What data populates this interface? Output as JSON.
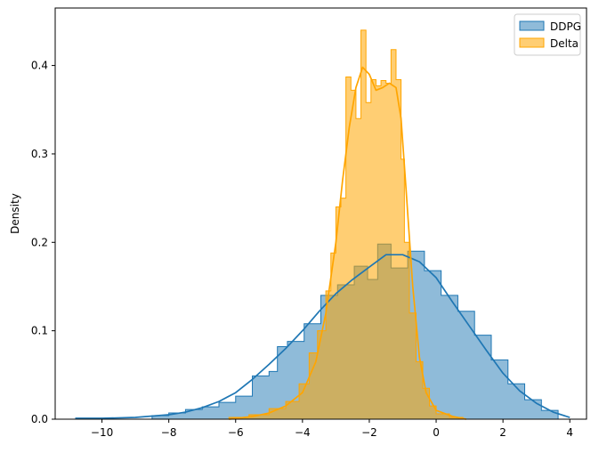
{
  "chart_data": {
    "type": "histogram",
    "title": "",
    "xlabel": "",
    "ylabel": "Density",
    "xlim": [
      -11.4,
      4.5
    ],
    "ylim": [
      0,
      0.465
    ],
    "xticks": [
      -10,
      -8,
      -6,
      -4,
      -2,
      0,
      2,
      4
    ],
    "xtick_labels": [
      "−10",
      "−8",
      "−6",
      "−4",
      "−2",
      "0",
      "2",
      "4"
    ],
    "yticks": [
      0.0,
      0.1,
      0.2,
      0.3,
      0.4
    ],
    "ytick_labels": [
      "0.0",
      "0.1",
      "0.2",
      "0.3",
      "0.4"
    ],
    "grid": false,
    "legend_position": "upper right",
    "series": [
      {
        "name": "DDPG",
        "color": "#1f77b4",
        "bins": [
          [
            -8.5,
            -8.0,
            0.004
          ],
          [
            -8.0,
            -7.5,
            0.007
          ],
          [
            -7.5,
            -7.0,
            0.011
          ],
          [
            -7.0,
            -6.5,
            0.014
          ],
          [
            -6.5,
            -6.0,
            0.019
          ],
          [
            -6.0,
            -5.5,
            0.026
          ],
          [
            -5.5,
            -5.0,
            0.049
          ],
          [
            -5.0,
            -4.75,
            0.054
          ],
          [
            -4.75,
            -4.45,
            0.082
          ],
          [
            -4.45,
            -3.95,
            0.088
          ],
          [
            -3.95,
            -3.45,
            0.108
          ],
          [
            -3.45,
            -2.95,
            0.14
          ],
          [
            -2.95,
            -2.45,
            0.152
          ],
          [
            -2.45,
            -2.05,
            0.173
          ],
          [
            -2.05,
            -1.75,
            0.158
          ],
          [
            -1.75,
            -1.35,
            0.198
          ],
          [
            -1.35,
            -0.85,
            0.171
          ],
          [
            -0.85,
            -0.35,
            0.19
          ],
          [
            -0.35,
            0.15,
            0.168
          ],
          [
            0.15,
            0.65,
            0.14
          ],
          [
            0.65,
            1.15,
            0.122
          ],
          [
            1.15,
            1.65,
            0.095
          ],
          [
            1.65,
            2.15,
            0.067
          ],
          [
            2.15,
            2.65,
            0.04
          ],
          [
            2.65,
            3.15,
            0.022
          ],
          [
            3.15,
            3.65,
            0.01
          ]
        ],
        "kde": [
          [
            -10.8,
            0.001
          ],
          [
            -10.0,
            0.001
          ],
          [
            -9.0,
            0.002
          ],
          [
            -8.0,
            0.005
          ],
          [
            -7.5,
            0.008
          ],
          [
            -7.0,
            0.013
          ],
          [
            -6.5,
            0.02
          ],
          [
            -6.0,
            0.03
          ],
          [
            -5.5,
            0.045
          ],
          [
            -5.0,
            0.062
          ],
          [
            -4.5,
            0.08
          ],
          [
            -4.0,
            0.1
          ],
          [
            -3.5,
            0.122
          ],
          [
            -3.0,
            0.142
          ],
          [
            -2.5,
            0.158
          ],
          [
            -2.0,
            0.172
          ],
          [
            -1.5,
            0.186
          ],
          [
            -1.0,
            0.186
          ],
          [
            -0.5,
            0.178
          ],
          [
            0.0,
            0.16
          ],
          [
            0.5,
            0.132
          ],
          [
            1.0,
            0.105
          ],
          [
            1.5,
            0.078
          ],
          [
            2.0,
            0.052
          ],
          [
            2.5,
            0.032
          ],
          [
            3.0,
            0.018
          ],
          [
            3.5,
            0.008
          ],
          [
            4.0,
            0.002
          ]
        ]
      },
      {
        "name": "Delta",
        "color": "#ffa500",
        "bins": [
          [
            -6.2,
            -5.6,
            0.002
          ],
          [
            -5.6,
            -5.0,
            0.005
          ],
          [
            -5.0,
            -4.5,
            0.012
          ],
          [
            -4.5,
            -4.1,
            0.02
          ],
          [
            -4.1,
            -3.8,
            0.04
          ],
          [
            -3.8,
            -3.55,
            0.075
          ],
          [
            -3.55,
            -3.3,
            0.1
          ],
          [
            -3.3,
            -3.15,
            0.145
          ],
          [
            -3.15,
            -3.0,
            0.188
          ],
          [
            -3.0,
            -2.85,
            0.24
          ],
          [
            -2.85,
            -2.7,
            0.25
          ],
          [
            -2.7,
            -2.55,
            0.387
          ],
          [
            -2.55,
            -2.4,
            0.372
          ],
          [
            -2.4,
            -2.25,
            0.34
          ],
          [
            -2.25,
            -2.1,
            0.44
          ],
          [
            -2.1,
            -1.95,
            0.358
          ],
          [
            -1.95,
            -1.8,
            0.384
          ],
          [
            -1.8,
            -1.65,
            0.377
          ],
          [
            -1.65,
            -1.5,
            0.383
          ],
          [
            -1.5,
            -1.35,
            0.38
          ],
          [
            -1.35,
            -1.2,
            0.418
          ],
          [
            -1.2,
            -1.05,
            0.384
          ],
          [
            -1.05,
            -0.95,
            0.294
          ],
          [
            -0.95,
            -0.8,
            0.2
          ],
          [
            -0.8,
            -0.6,
            0.12
          ],
          [
            -0.6,
            -0.4,
            0.065
          ],
          [
            -0.4,
            -0.2,
            0.035
          ],
          [
            -0.2,
            0.0,
            0.015
          ],
          [
            0.0,
            0.4,
            0.006
          ],
          [
            0.4,
            0.8,
            0.002
          ]
        ],
        "kde": [
          [
            -6.2,
            0.0
          ],
          [
            -5.5,
            0.003
          ],
          [
            -5.0,
            0.007
          ],
          [
            -4.5,
            0.015
          ],
          [
            -4.0,
            0.03
          ],
          [
            -3.6,
            0.065
          ],
          [
            -3.3,
            0.12
          ],
          [
            -3.0,
            0.2
          ],
          [
            -2.8,
            0.27
          ],
          [
            -2.6,
            0.33
          ],
          [
            -2.4,
            0.375
          ],
          [
            -2.2,
            0.398
          ],
          [
            -2.0,
            0.39
          ],
          [
            -1.8,
            0.372
          ],
          [
            -1.6,
            0.375
          ],
          [
            -1.4,
            0.38
          ],
          [
            -1.2,
            0.375
          ],
          [
            -1.05,
            0.34
          ],
          [
            -0.9,
            0.26
          ],
          [
            -0.7,
            0.15
          ],
          [
            -0.5,
            0.07
          ],
          [
            -0.3,
            0.03
          ],
          [
            0.0,
            0.01
          ],
          [
            0.5,
            0.003
          ],
          [
            0.9,
            0.0
          ]
        ]
      }
    ]
  }
}
